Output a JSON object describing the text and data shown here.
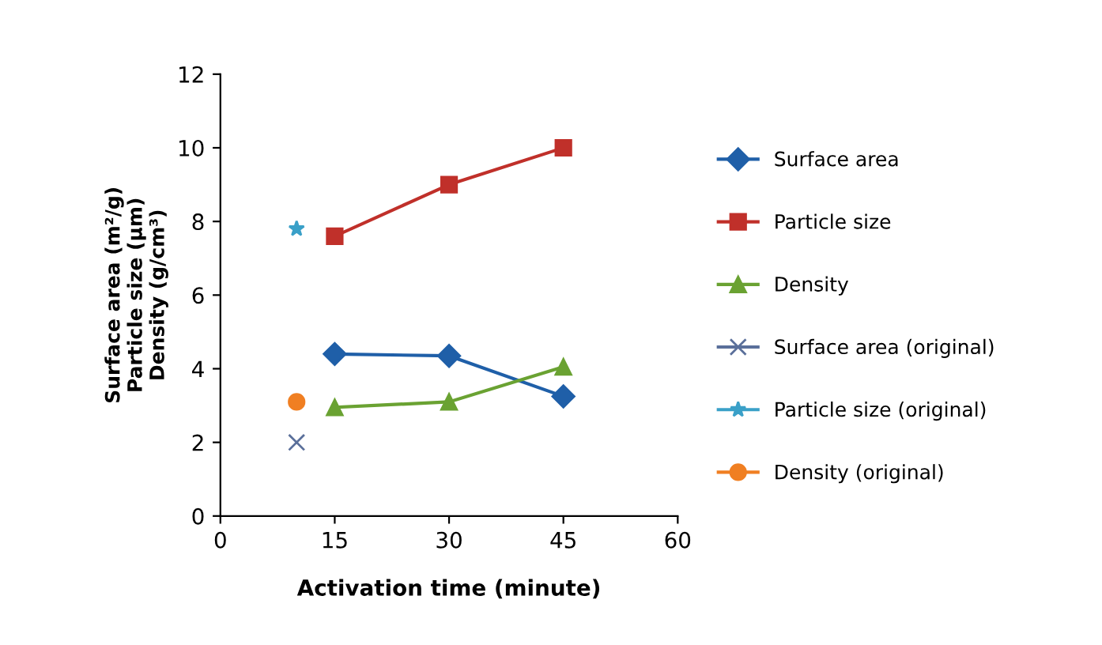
{
  "chart_data": {
    "type": "line",
    "xlabel": "Activation time (minute)",
    "ylabel": "Surface area (m²/g)\nParticle size (µm)\nDensity (g/cm³)",
    "xlim": [
      0,
      60
    ],
    "xticks": [
      0,
      15,
      30,
      45,
      60
    ],
    "ylim": [
      0,
      12
    ],
    "yticks": [
      0,
      2,
      4,
      6,
      8,
      10,
      12
    ],
    "grid": false,
    "legend": "right",
    "series": [
      {
        "name": "Surface area",
        "color": "#1f5fa8",
        "marker": "diamond",
        "x": [
          15,
          30,
          45
        ],
        "values": [
          4.4,
          4.35,
          3.25
        ]
      },
      {
        "name": "Particle size",
        "color": "#c0302a",
        "marker": "square",
        "x": [
          15,
          30,
          45
        ],
        "values": [
          7.6,
          9.0,
          10.0
        ]
      },
      {
        "name": "Density",
        "color": "#6aa232",
        "marker": "triangle",
        "x": [
          15,
          30,
          45
        ],
        "values": [
          2.95,
          3.1,
          4.05
        ]
      },
      {
        "name": "Surface area (original)",
        "color": "#5a6f9a",
        "marker": "cross",
        "x": [
          10
        ],
        "values": [
          2.0
        ]
      },
      {
        "name": "Particle size (original)",
        "color": "#3aa0c8",
        "marker": "star",
        "x": [
          10
        ],
        "values": [
          7.8
        ]
      },
      {
        "name": "Density (original)",
        "color": "#f07f22",
        "marker": "circle",
        "x": [
          10
        ],
        "values": [
          3.1
        ]
      }
    ]
  }
}
